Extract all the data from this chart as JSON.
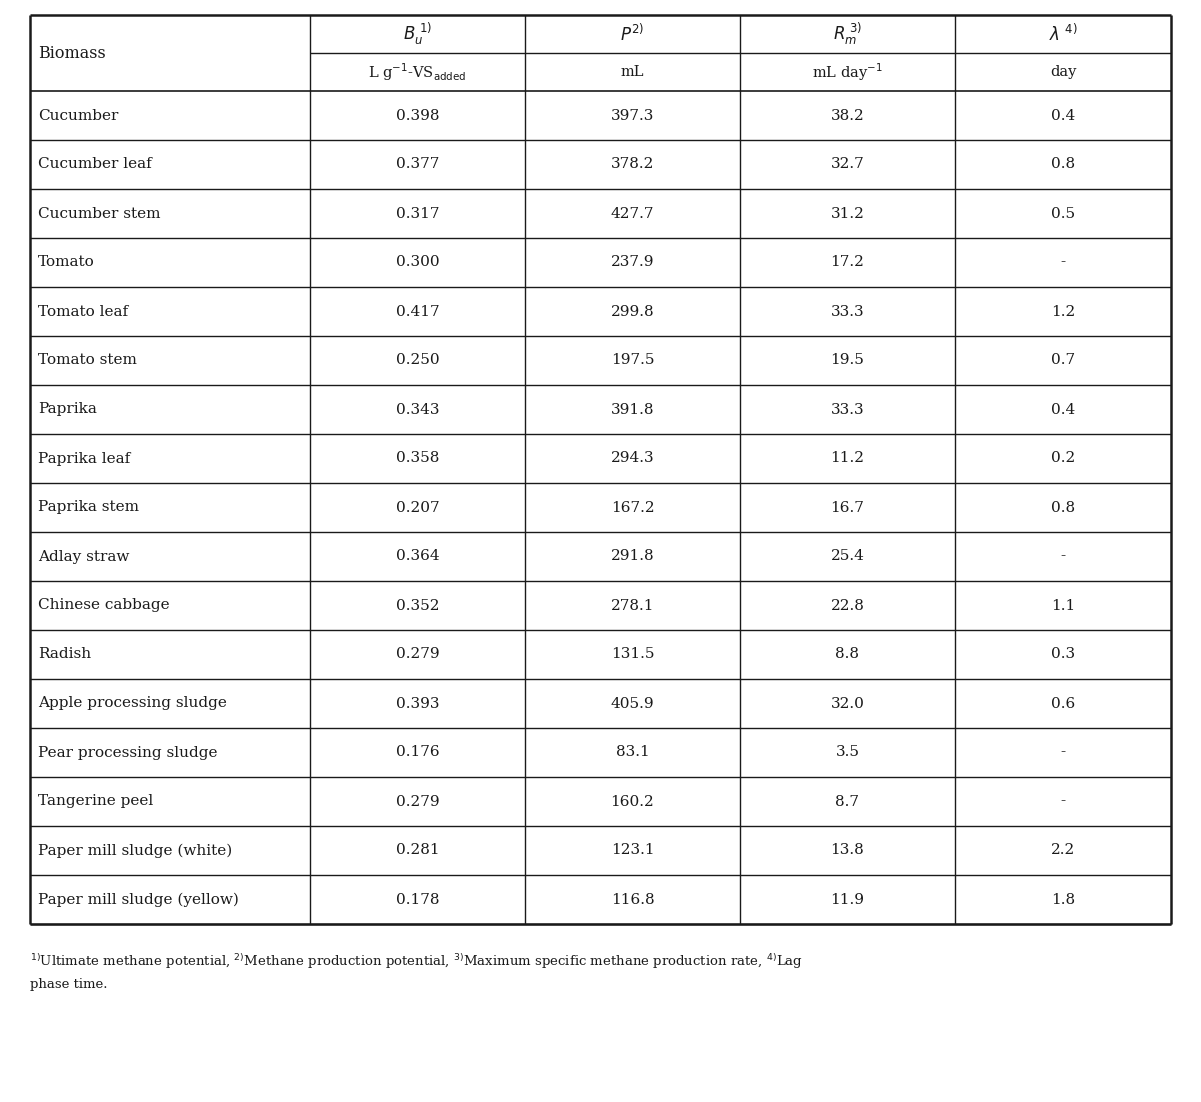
{
  "biomass_label": "Biomass",
  "rows": [
    [
      "Cucumber",
      "0.398",
      "397.3",
      "38.2",
      "0.4"
    ],
    [
      "Cucumber leaf",
      "0.377",
      "378.2",
      "32.7",
      "0.8"
    ],
    [
      "Cucumber stem",
      "0.317",
      "427.7",
      "31.2",
      "0.5"
    ],
    [
      "Tomato",
      "0.300",
      "237.9",
      "17.2",
      "-"
    ],
    [
      "Tomato leaf",
      "0.417",
      "299.8",
      "33.3",
      "1.2"
    ],
    [
      "Tomato stem",
      "0.250",
      "197.5",
      "19.5",
      "0.7"
    ],
    [
      "Paprika",
      "0.343",
      "391.8",
      "33.3",
      "0.4"
    ],
    [
      "Paprika leaf",
      "0.358",
      "294.3",
      "11.2",
      "0.2"
    ],
    [
      "Paprika stem",
      "0.207",
      "167.2",
      "16.7",
      "0.8"
    ],
    [
      "Adlay straw",
      "0.364",
      "291.8",
      "25.4",
      "-"
    ],
    [
      "Chinese cabbage",
      "0.352",
      "278.1",
      "22.8",
      "1.1"
    ],
    [
      "Radish",
      "0.279",
      "131.5",
      "8.8",
      "0.3"
    ],
    [
      "Apple processing sludge",
      "0.393",
      "405.9",
      "32.0",
      "0.6"
    ],
    [
      "Pear processing sludge",
      "0.176",
      "83.1",
      "3.5",
      "-"
    ],
    [
      "Tangerine peel",
      "0.279",
      "160.2",
      "8.7",
      "-"
    ],
    [
      "Paper mill sludge (white)",
      "0.281",
      "123.1",
      "13.8",
      "2.2"
    ],
    [
      "Paper mill sludge (yellow)",
      "0.178",
      "116.8",
      "11.9",
      "1.8"
    ]
  ],
  "border_color": "#1a1a1a",
  "text_color": "#1a1a1a",
  "bg_color": "#ffffff",
  "footnote_line1": "1)Ultimate methane potential, 2)Methane production potential, 3)Maximum specific methane production rate, 4)Lag",
  "footnote_line2": "phase time."
}
